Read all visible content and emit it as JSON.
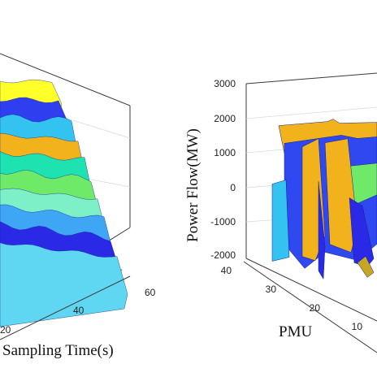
{
  "chart_data": [
    {
      "type": "surface",
      "title": "",
      "xlabel": "Sampling Time(s)",
      "ylabel": "",
      "zlabel": "",
      "x_ticks_visible": [
        "20",
        "40",
        "60"
      ],
      "xlim": [
        0,
        60
      ],
      "series_colors": [
        "#ffff2a",
        "#2f3ff0",
        "#34c3f0",
        "#f2b21c",
        "#1ee3b1",
        "#6ee968",
        "#7ef0c8",
        "#3fa6f5",
        "#2a2ae6",
        "#5fd6f2"
      ],
      "ridges": [
        {
          "color": "#ffff2a",
          "z": 0.95
        },
        {
          "color": "#2f3ff0",
          "z": 0.85
        },
        {
          "color": "#34c3f0",
          "z": 0.78
        },
        {
          "color": "#f2b21c",
          "z": 0.72
        },
        {
          "color": "#1ee3b1",
          "z": 0.62
        },
        {
          "color": "#6ee968",
          "z": 0.52
        },
        {
          "color": "#7ef0c8",
          "z": 0.45
        },
        {
          "color": "#3fa6f5",
          "z": 0.35
        },
        {
          "color": "#2a2ae6",
          "z": 0.25
        },
        {
          "color": "#5fd6f2",
          "z": 0.15
        }
      ]
    },
    {
      "type": "surface",
      "title": "",
      "xlabel": "PMU",
      "ylabel": "",
      "zlabel": "Power Flow(MW)",
      "z_ticks": [
        3000,
        2000,
        1000,
        0,
        -1000,
        -2000
      ],
      "zlim": [
        -2000,
        3000
      ],
      "pmu_ticks": [
        40,
        30,
        20,
        10
      ],
      "series_colors": [
        "#f2b21c",
        "#2f48f0",
        "#34c3f0",
        "#6ee968",
        "#2a2ae6",
        "#8fe0c0"
      ],
      "sheets": [
        {
          "color": "#f2b21c",
          "z": 1800
        },
        {
          "color": "#2f48f0",
          "z": 1200
        },
        {
          "color": "#6ee968",
          "z": 400
        },
        {
          "color": "#34c3f0",
          "z": -1500
        },
        {
          "color": "#f2b21c",
          "z": -900
        },
        {
          "color": "#2a2ae6",
          "z": 200
        }
      ]
    }
  ]
}
